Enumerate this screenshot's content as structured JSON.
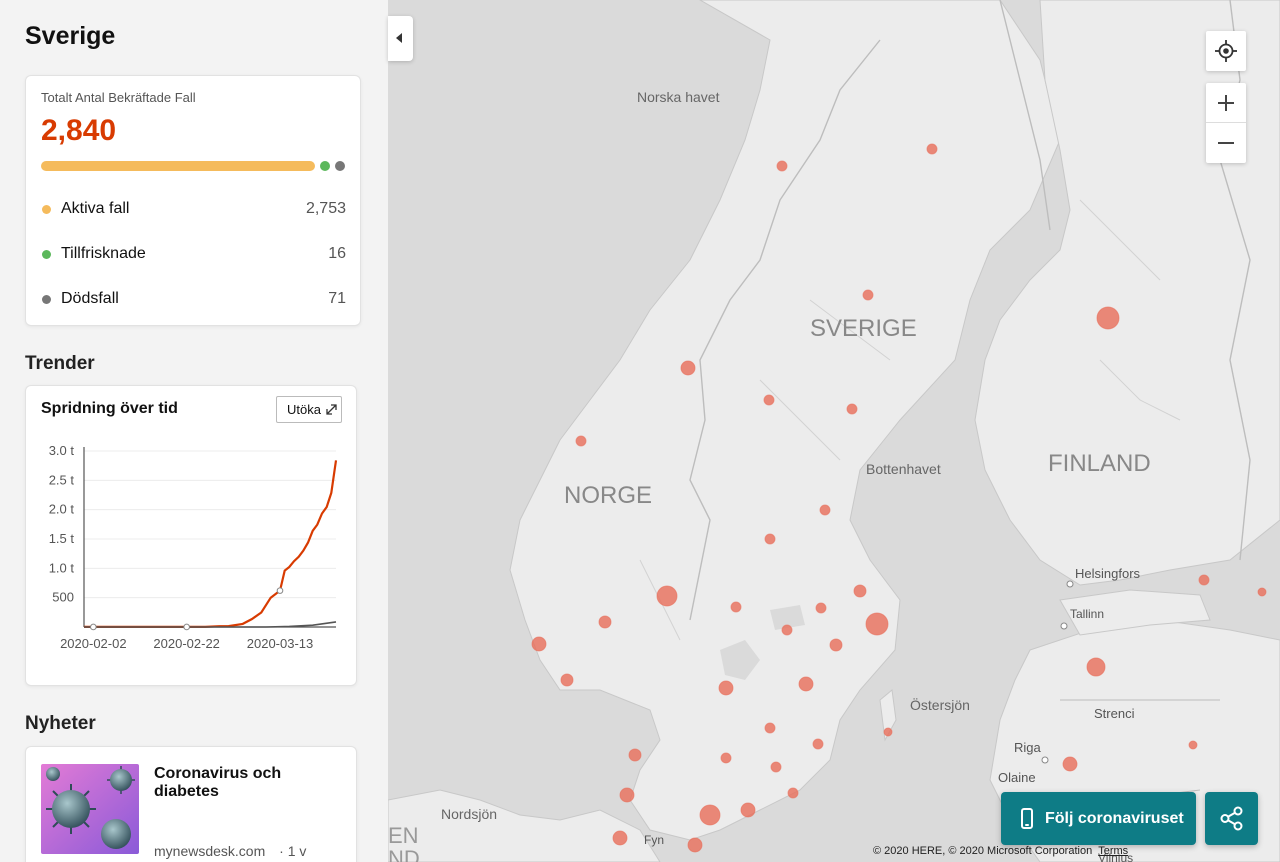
{
  "sidebar": {
    "region_title": "Sverige",
    "cases": {
      "label": "Totalt Antal Bekräftade Fall",
      "total": "2,840",
      "active_fraction": 0.969,
      "colors": {
        "active": "#f5bb5c",
        "recovered": "#5cb85c",
        "deaths": "#777777"
      },
      "rows": [
        {
          "label": "Aktiva fall",
          "value": "2,753",
          "color": "#f5bb5c"
        },
        {
          "label": "Tillfrisknade",
          "value": "16",
          "color": "#5cb85c"
        },
        {
          "label": "Dödsfall",
          "value": "71",
          "color": "#777777"
        }
      ]
    },
    "trends": {
      "section_title": "Trender",
      "card_title": "Spridning över tid",
      "expand_label": "Utöka",
      "expand_icon": "expand-arrow-icon"
    },
    "news": {
      "section_title": "Nyheter",
      "items": [
        {
          "headline": "Coronavirus och diabetes",
          "source": "mynewsdesk.com",
          "age": "· 1 v",
          "thumb_icon": "virus-image"
        }
      ]
    }
  },
  "chart_data": {
    "type": "line",
    "title": "Spridning över tid",
    "xlabel": "",
    "ylabel": "",
    "x_ticks": [
      "2020-02-02",
      "2020-02-22",
      "2020-03-13"
    ],
    "y_ticks": [
      "500",
      "1.0 t",
      "1.5 t",
      "2.0 t",
      "2.5 t",
      "3.0 t"
    ],
    "y_tick_values": [
      500,
      1000,
      1500,
      2000,
      2500,
      3000
    ],
    "ylim": [
      0,
      3000
    ],
    "xlim": [
      "2020-01-31",
      "2020-03-25"
    ],
    "grid": "horizontal",
    "series": [
      {
        "color": "#d83b01",
        "points": [
          [
            "2020-01-31",
            1
          ],
          [
            "2020-02-22",
            1
          ],
          [
            "2020-02-26",
            2
          ],
          [
            "2020-02-29",
            13
          ],
          [
            "2020-03-02",
            15
          ],
          [
            "2020-03-05",
            52
          ],
          [
            "2020-03-07",
            137
          ],
          [
            "2020-03-09",
            248
          ],
          [
            "2020-03-11",
            500
          ],
          [
            "2020-03-13",
            620
          ],
          [
            "2020-03-14",
            961
          ],
          [
            "2020-03-15",
            1023
          ],
          [
            "2020-03-16",
            1121
          ],
          [
            "2020-03-17",
            1196
          ],
          [
            "2020-03-18",
            1301
          ],
          [
            "2020-03-19",
            1439
          ],
          [
            "2020-03-20",
            1639
          ],
          [
            "2020-03-21",
            1746
          ],
          [
            "2020-03-22",
            1934
          ],
          [
            "2020-03-23",
            2046
          ],
          [
            "2020-03-24",
            2286
          ],
          [
            "2020-03-25",
            2840
          ]
        ]
      },
      {
        "color": "#555555",
        "points": [
          [
            "2020-01-31",
            0
          ],
          [
            "2020-03-10",
            0
          ],
          [
            "2020-03-15",
            10
          ],
          [
            "2020-03-20",
            30
          ],
          [
            "2020-03-25",
            87
          ]
        ]
      }
    ],
    "markers": [
      {
        "x": "2020-02-02",
        "y": 1
      },
      {
        "x": "2020-02-22",
        "y": 1
      },
      {
        "x": "2020-03-13",
        "y": 620
      }
    ]
  },
  "map": {
    "labels": {
      "sea_norwegian": "Norska havet",
      "sweden": "SVERIGE",
      "norway": "NORGE",
      "finland": "FINLAND",
      "bothnian": "Bottenhavet",
      "helsinki": "Helsingfors",
      "tallinn": "Tallinn",
      "ostersjon": "Östersjön",
      "strenci": "Strenci",
      "riga": "Riga",
      "olaine": "Olaine",
      "nordsjon": "Nordsjön",
      "fyn": "Fyn",
      "dk_partial": "EN",
      "dk_partial2": "ND",
      "vilnius_partial": "Vilnius"
    },
    "controls": {
      "locate_icon": "locate-icon",
      "zoom_in_icon": "plus-icon",
      "zoom_out_icon": "minus-icon",
      "collapse_icon": "chevron-left-icon"
    },
    "follow_label": "Följ coronaviruset",
    "follow_icon": "phone-icon",
    "share_icon": "share-icon",
    "copyright": "© 2020 HERE, © 2020 Microsoft Corporation",
    "terms": "Terms",
    "bubble_color": "#e86e5a"
  }
}
